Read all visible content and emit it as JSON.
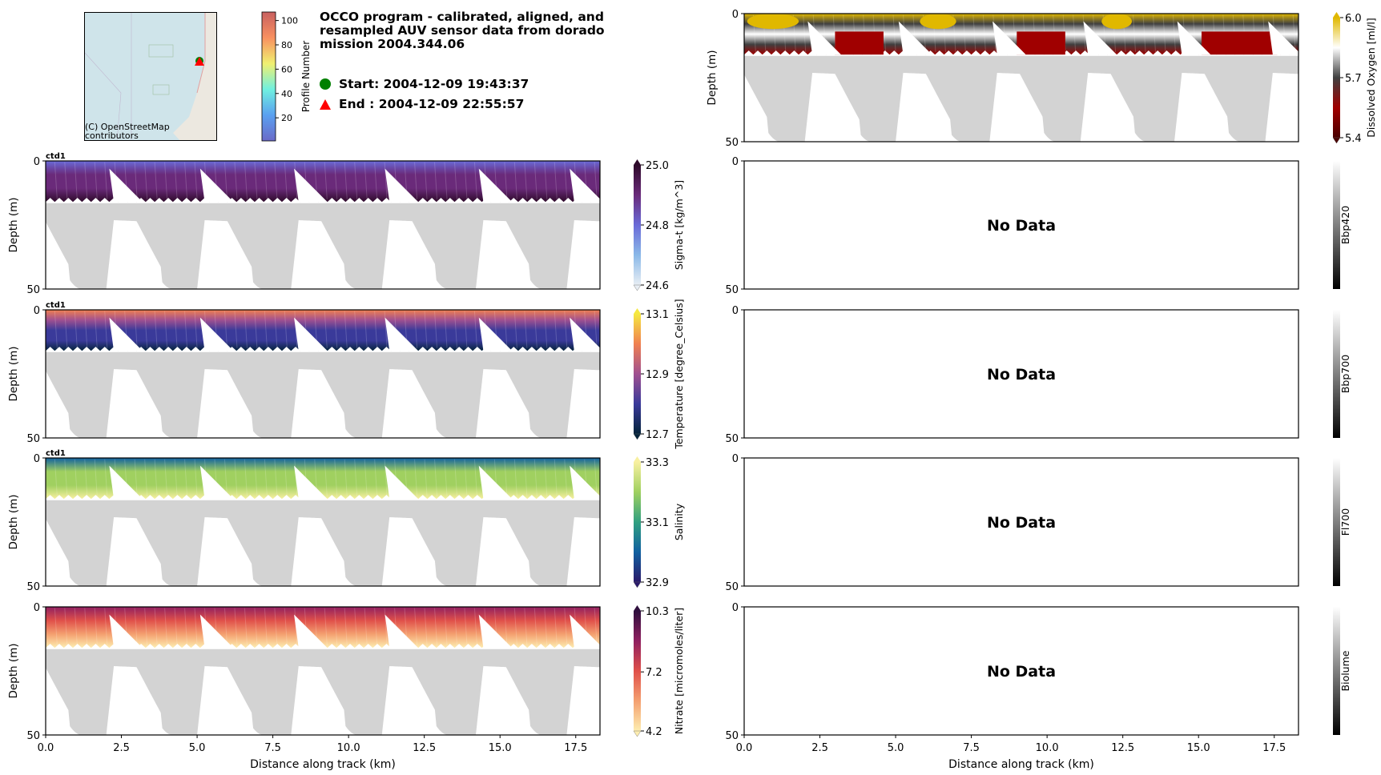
{
  "header": {
    "title": "OCCO program - calibrated, aligned, and resampled AUV sensor data from dorado mission 2004.344.06",
    "start_label": "Start: 2004-12-09 19:43:37",
    "end_label": "End  : 2004-12-09 22:55:57",
    "start_marker_color": "#008000",
    "end_marker_color": "#ff0000"
  },
  "map": {
    "attribution": "(C) OpenStreetMap contributors",
    "colorbar_label": "Profile Number",
    "colorbar_ticks": [
      "20",
      "40",
      "60",
      "80",
      "100"
    ],
    "colorbar_tick_values": [
      20,
      40,
      60,
      80,
      100
    ],
    "colorbar_range": [
      1,
      107
    ]
  },
  "chart_data": [
    {
      "type": "heatmap",
      "id": "sigma",
      "column": "left",
      "source_label": "ctd1",
      "variable": "Sigma-t [kg/m^3]",
      "ylabel": "Depth (m)",
      "clim": [
        24.6,
        25.0
      ],
      "cbar_ticks": [
        "25.0",
        "24.8",
        "24.6"
      ],
      "cbar_tick_values": [
        25.0,
        24.8,
        24.6
      ],
      "has_data": true,
      "colors": [
        "#e8eef4",
        "#8ab8e8",
        "#6a6ad8",
        "#6a2a7a",
        "#2e0a2a"
      ]
    },
    {
      "type": "heatmap",
      "id": "temperature",
      "column": "left",
      "source_label": "ctd1",
      "variable": "Temperature [degree_Celsius]",
      "ylabel": "Depth (m)",
      "clim": [
        12.7,
        13.1
      ],
      "cbar_ticks": [
        "13.1",
        "12.9",
        "12.7"
      ],
      "cbar_tick_values": [
        13.1,
        12.9,
        12.7
      ],
      "has_data": true,
      "colors": [
        "#04233a",
        "#3a3a9a",
        "#a05090",
        "#f08050",
        "#f5e840"
      ]
    },
    {
      "type": "heatmap",
      "id": "salinity",
      "column": "left",
      "source_label": "ctd1",
      "variable": "Salinity",
      "ylabel": "Depth (m)",
      "clim": [
        32.9,
        33.3
      ],
      "cbar_ticks": [
        "33.3",
        "33.1",
        "32.9"
      ],
      "cbar_tick_values": [
        33.3,
        33.1,
        32.9
      ],
      "has_data": true,
      "colors": [
        "#2a1a6a",
        "#1060a0",
        "#30a080",
        "#a0d060",
        "#f8f0a0"
      ]
    },
    {
      "type": "heatmap",
      "id": "nitrate",
      "column": "left",
      "source_label": "",
      "variable": "Nitrate [micromoles/liter]",
      "ylabel": "Depth (m)",
      "clim": [
        4.2,
        10.3
      ],
      "cbar_ticks": [
        "10.3",
        "7.2",
        "4.2"
      ],
      "cbar_tick_values": [
        10.3,
        7.2,
        4.2
      ],
      "has_data": true,
      "colors": [
        "#fdedb0",
        "#f4a070",
        "#e0504a",
        "#902060",
        "#2f0f3d"
      ]
    },
    {
      "type": "heatmap",
      "id": "oxygen",
      "column": "right",
      "source_label": "",
      "variable": "Dissolved Oxygen [ml/l]",
      "ylabel": "Depth (m)",
      "clim": [
        5.4,
        6.0
      ],
      "cbar_ticks": [
        "6.0",
        "5.7",
        "5.4"
      ],
      "cbar_tick_values": [
        6.0,
        5.7,
        5.4
      ],
      "has_data": true,
      "colors": [
        "#4a0000",
        "#a00000",
        "#404040",
        "#ffffff",
        "#e0b800"
      ]
    },
    {
      "type": "heatmap",
      "id": "bbp420",
      "column": "right",
      "source_label": "",
      "variable": "Bbp420",
      "ylabel": "",
      "has_data": false,
      "no_data_label": "No Data",
      "colors": [
        "#000000",
        "#ffffff"
      ]
    },
    {
      "type": "heatmap",
      "id": "bbp700",
      "column": "right",
      "source_label": "",
      "variable": "Bbp700",
      "ylabel": "",
      "has_data": false,
      "no_data_label": "No Data",
      "colors": [
        "#000000",
        "#ffffff"
      ]
    },
    {
      "type": "heatmap",
      "id": "fl700",
      "column": "right",
      "source_label": "",
      "variable": "Fl700",
      "ylabel": "",
      "has_data": false,
      "no_data_label": "No Data",
      "colors": [
        "#000000",
        "#ffffff"
      ]
    },
    {
      "type": "heatmap",
      "id": "biolume",
      "column": "right",
      "source_label": "",
      "variable": "Biolume",
      "ylabel": "",
      "has_data": false,
      "no_data_label": "No Data",
      "colors": [
        "#000000",
        "#ffffff"
      ]
    }
  ],
  "axes": {
    "xlabel": "Distance along track (km)",
    "xlim": [
      0,
      18.3
    ],
    "ylim": [
      50,
      0
    ],
    "x_ticks": [
      "0.0",
      "2.5",
      "5.0",
      "7.5",
      "10.0",
      "12.5",
      "15.0",
      "17.5"
    ],
    "x_tick_values": [
      0,
      2.5,
      5,
      7.5,
      10,
      12.5,
      15,
      17.5
    ],
    "y_ticks": [
      "0",
      "50"
    ],
    "y_tick_values": [
      0,
      50
    ],
    "max_data_depth": 16,
    "bathymetry_color": "#d3d3d3"
  }
}
